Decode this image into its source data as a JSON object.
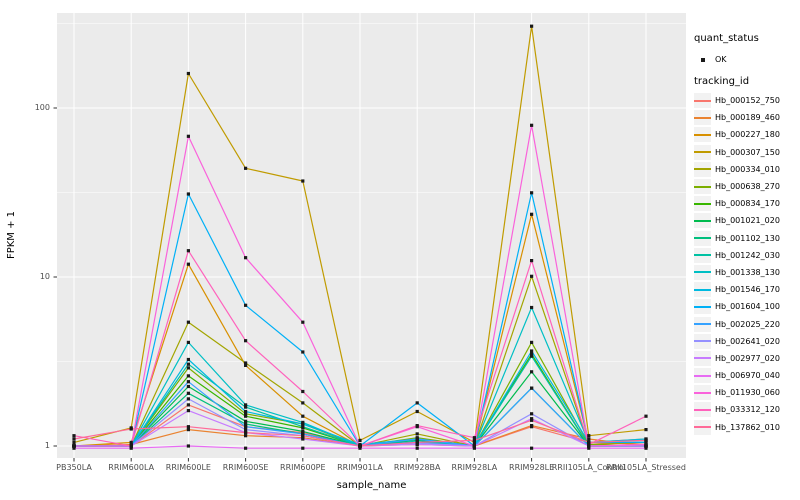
{
  "figure": {
    "background": "#FFFFFF",
    "panel_bg": "#EBEBEB",
    "grid_color": "#FFFFFF",
    "point_color": "#1A1A1A",
    "axis_text_color": "#4D4D4D",
    "tick_color": "#333333",
    "legend_key_bg": "#F2F2F2"
  },
  "axes": {
    "y_title": "FPKM + 1",
    "x_title": "sample_name",
    "y_ticks": [
      {
        "label": "100",
        "value": 100
      },
      {
        "label": "10",
        "value": 10
      },
      {
        "label": "1",
        "value": 1
      }
    ]
  },
  "legend": {
    "quant_status_title": "quant_status",
    "quant_status_items": [
      {
        "label": "OK",
        "symbol": "point"
      }
    ],
    "tracking_id_title": "tracking_id"
  },
  "chart_data": {
    "type": "line",
    "title": "",
    "xlabel": "sample_name",
    "ylabel": "FPKM + 1",
    "yscale": "log10",
    "ylim": [
      0.9,
      340
    ],
    "grid": true,
    "legend_position": "right",
    "point_shape": "small-black-square",
    "categories": [
      "PB350LA",
      "RRIM600LA",
      "RRIM600LE",
      "RRIM600SE",
      "RRIM600PE",
      "RRIM901LA",
      "RRIM928BA",
      "RRIM928LA",
      "RRIM928LE",
      "RRII105LA_Control",
      "RRII105LA_Stressed"
    ],
    "series": [
      {
        "name": "Hb_000152_750",
        "color": "#F8766D",
        "values": [
          1.0,
          1.0,
          1.75,
          1.3,
          1.2,
          1.0,
          1.05,
          1.0,
          1.3,
          1.05,
          1.02
        ]
      },
      {
        "name": "Hb_000189_460",
        "color": "#EA8331",
        "values": [
          1.0,
          1.02,
          1.25,
          1.15,
          1.12,
          1.0,
          1.02,
          1.0,
          1.32,
          1.1,
          1.0
        ]
      },
      {
        "name": "Hb_000227_180",
        "color": "#D89000",
        "values": [
          1.0,
          1.05,
          11.9,
          3.0,
          1.5,
          1.0,
          1.1,
          1.0,
          23.5,
          1.05,
          1.1
        ]
      },
      {
        "name": "Hb_000307_150",
        "color": "#C09B00",
        "values": [
          1.05,
          1.28,
          160.0,
          44.0,
          37.0,
          1.08,
          1.6,
          1.05,
          305.0,
          1.15,
          1.25
        ]
      },
      {
        "name": "Hb_000334_010",
        "color": "#A3A500",
        "values": [
          1.0,
          1.0,
          5.4,
          3.1,
          1.8,
          1.0,
          1.18,
          1.0,
          10.1,
          1.02,
          1.05
        ]
      },
      {
        "name": "Hb_000638_270",
        "color": "#7CAE00",
        "values": [
          1.0,
          1.0,
          2.9,
          1.55,
          1.35,
          1.0,
          1.12,
          1.0,
          4.1,
          1.02,
          1.0
        ]
      },
      {
        "name": "Hb_000834_170",
        "color": "#39B600",
        "values": [
          1.0,
          1.0,
          2.6,
          1.5,
          1.28,
          1.0,
          1.1,
          1.0,
          3.5,
          1.0,
          1.0
        ]
      },
      {
        "name": "Hb_001021_020",
        "color": "#00BB4E",
        "values": [
          1.0,
          1.0,
          2.25,
          1.4,
          1.22,
          1.0,
          1.05,
          1.0,
          2.75,
          1.0,
          1.0
        ]
      },
      {
        "name": "Hb_001102_130",
        "color": "#00BF7D",
        "values": [
          1.0,
          1.0,
          2.05,
          1.35,
          1.18,
          1.0,
          1.08,
          1.0,
          2.2,
          1.0,
          1.0
        ]
      },
      {
        "name": "Hb_001242_030",
        "color": "#00C1A3",
        "values": [
          1.0,
          1.0,
          3.05,
          1.7,
          1.3,
          1.0,
          1.05,
          1.0,
          3.4,
          1.0,
          1.0
        ]
      },
      {
        "name": "Hb_001338_130",
        "color": "#00BFC4",
        "values": [
          1.0,
          1.0,
          4.1,
          1.75,
          1.38,
          1.0,
          1.06,
          1.0,
          6.6,
          1.05,
          1.08
        ]
      },
      {
        "name": "Hb_001546_170",
        "color": "#00BAE0",
        "values": [
          1.0,
          1.0,
          3.25,
          1.6,
          1.35,
          1.02,
          1.1,
          1.0,
          3.65,
          1.05,
          1.1
        ]
      },
      {
        "name": "Hb_001604_100",
        "color": "#00B0F6",
        "values": [
          1.0,
          1.0,
          31.0,
          6.8,
          3.6,
          1.0,
          1.8,
          1.0,
          31.5,
          1.05,
          1.05
        ]
      },
      {
        "name": "Hb_002025_220",
        "color": "#35A2FF",
        "values": [
          1.0,
          1.0,
          2.4,
          1.3,
          1.18,
          1.0,
          1.1,
          1.0,
          2.2,
          1.0,
          1.0
        ]
      },
      {
        "name": "Hb_002641_020",
        "color": "#9590FF",
        "values": [
          1.0,
          1.0,
          1.9,
          1.25,
          1.15,
          1.0,
          1.04,
          1.0,
          1.55,
          1.0,
          1.0
        ]
      },
      {
        "name": "Hb_002977_020",
        "color": "#C77CFF",
        "values": [
          1.0,
          1.0,
          1.62,
          1.2,
          1.1,
          1.0,
          1.02,
          1.0,
          1.45,
          1.0,
          1.0
        ]
      },
      {
        "name": "Hb_006970_040",
        "color": "#E76BF3",
        "values": [
          0.97,
          0.97,
          1.0,
          0.97,
          0.97,
          0.97,
          0.97,
          0.97,
          0.97,
          0.97,
          0.97
        ]
      },
      {
        "name": "Hb_011930_060",
        "color": "#FA62DB",
        "values": [
          1.0,
          1.0,
          68.0,
          13.0,
          5.4,
          1.0,
          1.3,
          1.0,
          79.0,
          1.0,
          1.02
        ]
      },
      {
        "name": "Hb_033312_120",
        "color": "#FF62BC",
        "values": [
          1.15,
          1.0,
          14.3,
          4.2,
          2.1,
          1.0,
          1.32,
          1.12,
          12.5,
          1.02,
          1.5
        ]
      },
      {
        "name": "Hb_137862_010",
        "color": "#FF6A98",
        "values": [
          1.1,
          1.26,
          1.3,
          1.2,
          1.15,
          1.0,
          1.05,
          1.08,
          1.42,
          1.05,
          1.08
        ]
      }
    ]
  }
}
